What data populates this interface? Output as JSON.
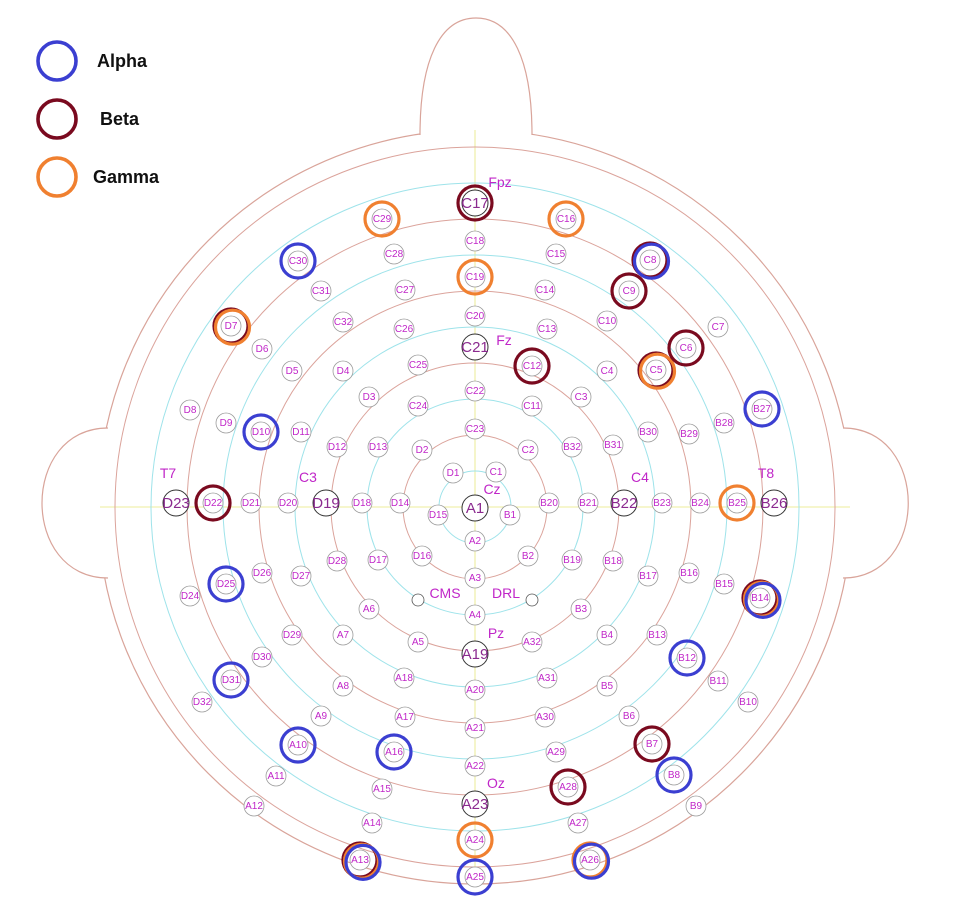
{
  "legend": [
    {
      "label": "Alpha",
      "color": "#3b3fd1"
    },
    {
      "label": "Beta",
      "color": "#7a0a1f"
    },
    {
      "label": "Gamma",
      "color": "#f08030"
    }
  ],
  "regions": [
    "Fpz",
    "Fz",
    "Cz",
    "Pz",
    "Oz",
    "T7",
    "T8",
    "C3",
    "C4",
    "CMS",
    "DRL"
  ],
  "electrodes": [
    {
      "id": "A1",
      "big": true
    },
    {
      "id": "A2"
    },
    {
      "id": "A3"
    },
    {
      "id": "A4"
    },
    {
      "id": "A5"
    },
    {
      "id": "A6"
    },
    {
      "id": "A7"
    },
    {
      "id": "A8"
    },
    {
      "id": "A9"
    },
    {
      "id": "A10",
      "bands": [
        "alpha"
      ]
    },
    {
      "id": "A11"
    },
    {
      "id": "A12"
    },
    {
      "id": "A13",
      "bands": [
        "beta",
        "gamma",
        "alpha"
      ]
    },
    {
      "id": "A14"
    },
    {
      "id": "A15"
    },
    {
      "id": "A16",
      "bands": [
        "alpha"
      ]
    },
    {
      "id": "A17"
    },
    {
      "id": "A18"
    },
    {
      "id": "A19",
      "big": true
    },
    {
      "id": "A20"
    },
    {
      "id": "A21"
    },
    {
      "id": "A22"
    },
    {
      "id": "A23",
      "big": true
    },
    {
      "id": "A24",
      "bands": [
        "gamma"
      ]
    },
    {
      "id": "A25",
      "bands": [
        "alpha"
      ]
    },
    {
      "id": "A26",
      "bands": [
        "gamma",
        "alpha"
      ]
    },
    {
      "id": "A27"
    },
    {
      "id": "A28",
      "bands": [
        "beta"
      ]
    },
    {
      "id": "A29"
    },
    {
      "id": "A30"
    },
    {
      "id": "A31"
    },
    {
      "id": "A32"
    },
    {
      "id": "B1"
    },
    {
      "id": "B2"
    },
    {
      "id": "B3"
    },
    {
      "id": "B4"
    },
    {
      "id": "B5"
    },
    {
      "id": "B6"
    },
    {
      "id": "B7",
      "bands": [
        "beta"
      ]
    },
    {
      "id": "B8",
      "bands": [
        "alpha"
      ]
    },
    {
      "id": "B9"
    },
    {
      "id": "B10"
    },
    {
      "id": "B11"
    },
    {
      "id": "B12",
      "bands": [
        "alpha"
      ]
    },
    {
      "id": "B13"
    },
    {
      "id": "B14",
      "bands": [
        "beta",
        "gamma",
        "alpha"
      ]
    },
    {
      "id": "B15"
    },
    {
      "id": "B16"
    },
    {
      "id": "B17"
    },
    {
      "id": "B18"
    },
    {
      "id": "B19"
    },
    {
      "id": "B20"
    },
    {
      "id": "B21"
    },
    {
      "id": "B22",
      "big": true
    },
    {
      "id": "B23"
    },
    {
      "id": "B24"
    },
    {
      "id": "B25",
      "bands": [
        "gamma"
      ]
    },
    {
      "id": "B26",
      "big": true
    },
    {
      "id": "B27",
      "bands": [
        "alpha"
      ]
    },
    {
      "id": "B28"
    },
    {
      "id": "B29"
    },
    {
      "id": "B30"
    },
    {
      "id": "B31"
    },
    {
      "id": "B32"
    },
    {
      "id": "C1"
    },
    {
      "id": "C2"
    },
    {
      "id": "C3"
    },
    {
      "id": "C4"
    },
    {
      "id": "C5",
      "bands": [
        "beta",
        "gamma"
      ]
    },
    {
      "id": "C6",
      "bands": [
        "beta"
      ]
    },
    {
      "id": "C7"
    },
    {
      "id": "C8",
      "bands": [
        "beta",
        "alpha"
      ]
    },
    {
      "id": "C9",
      "bands": [
        "beta"
      ]
    },
    {
      "id": "C10"
    },
    {
      "id": "C11"
    },
    {
      "id": "C12",
      "bands": [
        "beta"
      ]
    },
    {
      "id": "C13"
    },
    {
      "id": "C14"
    },
    {
      "id": "C15"
    },
    {
      "id": "C16",
      "bands": [
        "gamma"
      ]
    },
    {
      "id": "C17",
      "big": true,
      "bands": [
        "beta"
      ]
    },
    {
      "id": "C18"
    },
    {
      "id": "C19",
      "bands": [
        "gamma"
      ]
    },
    {
      "id": "C20"
    },
    {
      "id": "C21",
      "big": true
    },
    {
      "id": "C22"
    },
    {
      "id": "C23"
    },
    {
      "id": "C24"
    },
    {
      "id": "C25"
    },
    {
      "id": "C26"
    },
    {
      "id": "C27"
    },
    {
      "id": "C28"
    },
    {
      "id": "C29",
      "bands": [
        "gamma"
      ]
    },
    {
      "id": "C30",
      "bands": [
        "alpha"
      ]
    },
    {
      "id": "C31"
    },
    {
      "id": "C32"
    },
    {
      "id": "D1"
    },
    {
      "id": "D2"
    },
    {
      "id": "D3"
    },
    {
      "id": "D4"
    },
    {
      "id": "D5"
    },
    {
      "id": "D6"
    },
    {
      "id": "D7",
      "bands": [
        "beta",
        "gamma"
      ]
    },
    {
      "id": "D8"
    },
    {
      "id": "D9"
    },
    {
      "id": "D10",
      "bands": [
        "alpha"
      ]
    },
    {
      "id": "D11"
    },
    {
      "id": "D12"
    },
    {
      "id": "D13"
    },
    {
      "id": "D14"
    },
    {
      "id": "D15"
    },
    {
      "id": "D16"
    },
    {
      "id": "D17"
    },
    {
      "id": "D18"
    },
    {
      "id": "D19",
      "big": true
    },
    {
      "id": "D20"
    },
    {
      "id": "D21"
    },
    {
      "id": "D22",
      "bands": [
        "beta"
      ]
    },
    {
      "id": "D23",
      "big": true
    },
    {
      "id": "D24"
    },
    {
      "id": "D25",
      "bands": [
        "alpha"
      ]
    },
    {
      "id": "D26"
    },
    {
      "id": "D27"
    },
    {
      "id": "D28"
    },
    {
      "id": "D29"
    },
    {
      "id": "D30"
    },
    {
      "id": "D31",
      "bands": [
        "alpha"
      ]
    },
    {
      "id": "D32"
    }
  ]
}
